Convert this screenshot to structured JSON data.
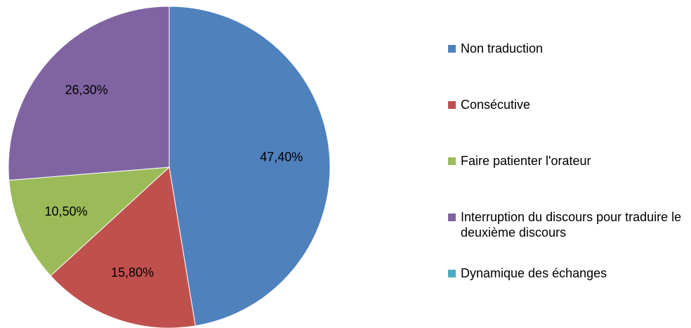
{
  "chart_data": {
    "type": "pie",
    "categories": [
      "Non traduction",
      "Consécutive",
      "Faire patienter l'orateur",
      "Interruption du discours pour traduire le deuxième discours",
      "Dynamique des échanges"
    ],
    "values": [
      47.4,
      15.8,
      10.5,
      26.3,
      0
    ],
    "value_labels": [
      "47,40%",
      "15,80%",
      "10,50%",
      "26,30%",
      null
    ],
    "colors": [
      "#4f81bd",
      "#c0504d",
      "#9bbb59",
      "#8064a2",
      "#4bacc6"
    ],
    "legend": "right"
  }
}
